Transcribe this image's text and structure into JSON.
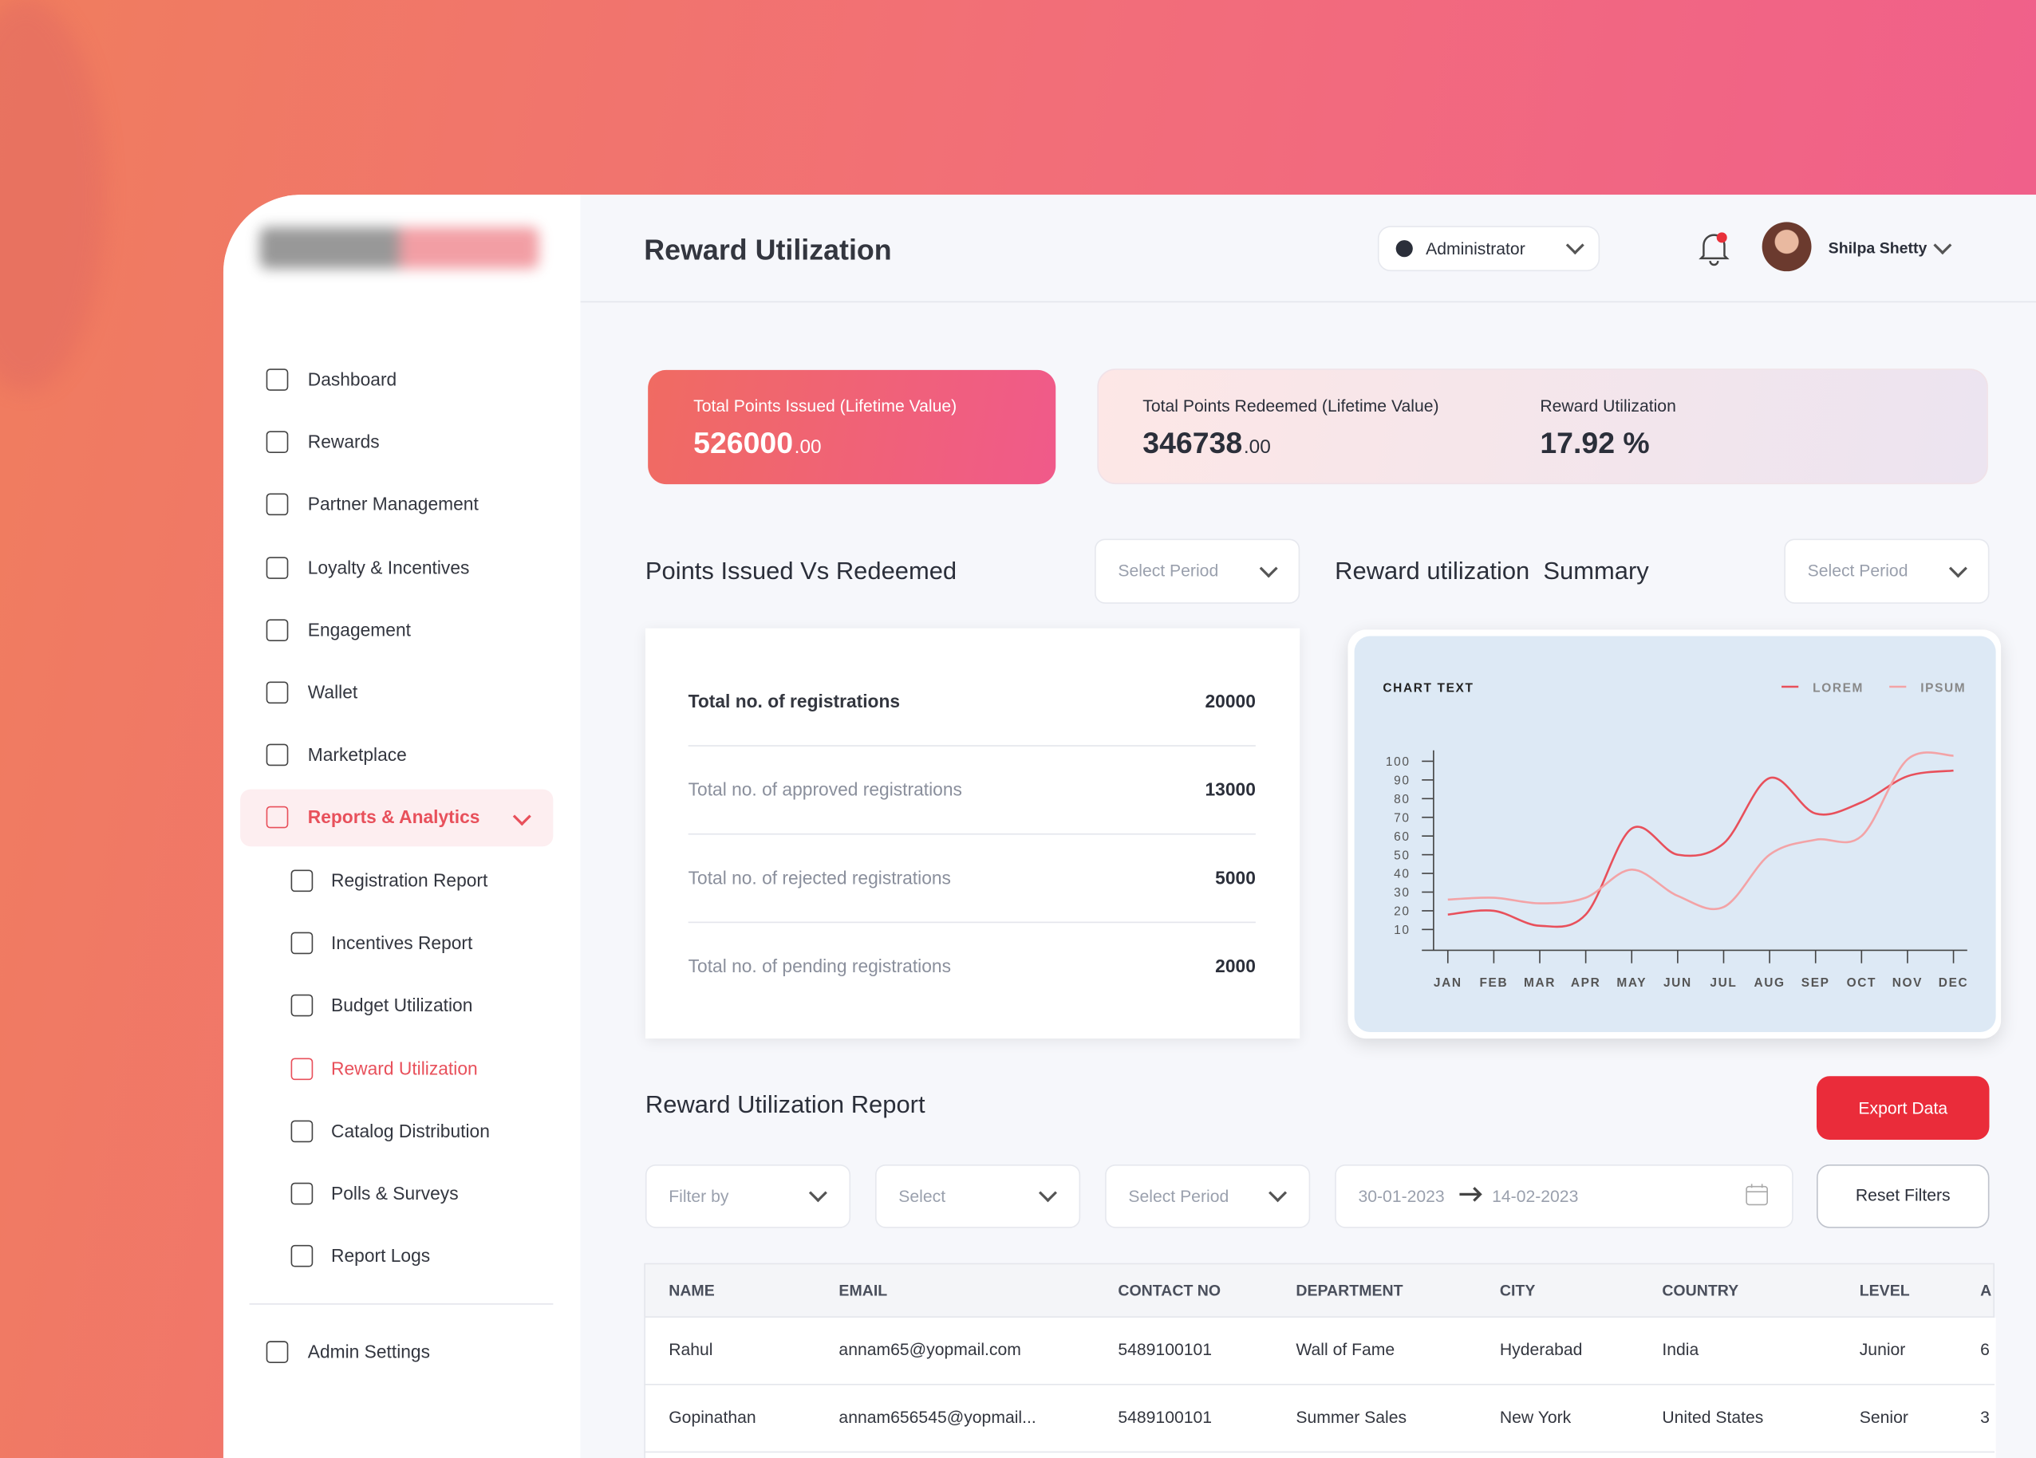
{
  "header": {
    "title": "Reward Utilization",
    "role": "Administrator",
    "user": "Shilpa Shetty"
  },
  "sidebar": {
    "items": [
      "Dashboard",
      "Rewards",
      "Partner Management",
      "Loyalty & Incentives",
      "Engagement",
      "Wallet",
      "Marketplace",
      "Reports & Analytics"
    ],
    "submenu": [
      "Registration Report",
      "Incentives Report",
      "Budget Utilization",
      "Reward Utilization",
      "Catalog Distribution",
      "Polls & Surveys",
      "Report Logs"
    ],
    "settings": "Admin Settings"
  },
  "stats": [
    {
      "label": "Total Points Issued (Lifetime Value)",
      "value": "526000",
      "decimals": ".00"
    },
    {
      "label": "Total Points Redeemed (Lifetime Value)",
      "value": "346738",
      "decimals": ".00"
    },
    {
      "label": "Reward Utilization",
      "value": "17.92 %"
    }
  ],
  "points": {
    "title": "Points Issued Vs Redeemed",
    "period": "Select Period",
    "rows": [
      [
        "Total no. of registrations",
        "20000"
      ],
      [
        "Total no. of approved registrations",
        "13000"
      ],
      [
        "Total no. of rejected registrations",
        "5000"
      ],
      [
        "Total no. of pending registrations",
        "2000"
      ]
    ]
  },
  "summary": {
    "title": "Reward utilization  Summary",
    "period": "Select Period",
    "chart_data": {
      "type": "line",
      "title": "CHART TEXT",
      "categories": [
        "JAN",
        "FEB",
        "MAR",
        "APR",
        "MAY",
        "JUN",
        "JUL",
        "AUG",
        "SEP",
        "OCT",
        "NOV",
        "DEC"
      ],
      "series": [
        {
          "name": "LOREM",
          "color": "#e8505b",
          "values": [
            18,
            20,
            12,
            18,
            64,
            50,
            56,
            91,
            72,
            78,
            92,
            95
          ]
        },
        {
          "name": "IPSUM",
          "color": "#f3a3a6",
          "values": [
            26,
            27,
            24,
            27,
            42,
            28,
            22,
            50,
            58,
            60,
            101,
            103
          ]
        }
      ],
      "ylim": [
        0,
        105
      ],
      "yticks": [
        10,
        20,
        30,
        40,
        50,
        60,
        70,
        80,
        90,
        100
      ],
      "legend": "top-right"
    }
  },
  "report": {
    "title": "Reward Utilization Report",
    "export": "Export Data",
    "filters": [
      "Filter by",
      "Select",
      "Select Period"
    ],
    "date_from": "30-01-2023",
    "date_to": "14-02-2023",
    "reset": "Reset Filters",
    "columns": [
      "NAME",
      "EMAIL",
      "CONTACT NO",
      "DEPARTMENT",
      "CITY",
      "COUNTRY",
      "LEVEL",
      "A"
    ],
    "rows": [
      [
        "Rahul",
        "annam65@yopmail.com",
        "5489100101",
        "Wall of Fame",
        "Hyderabad",
        "India",
        "Junior",
        "6"
      ],
      [
        "Gopinathan",
        "annam656545@yopmail...",
        "5489100101",
        "Summer Sales",
        "New York",
        "United States",
        "Senior",
        "3"
      ]
    ]
  }
}
